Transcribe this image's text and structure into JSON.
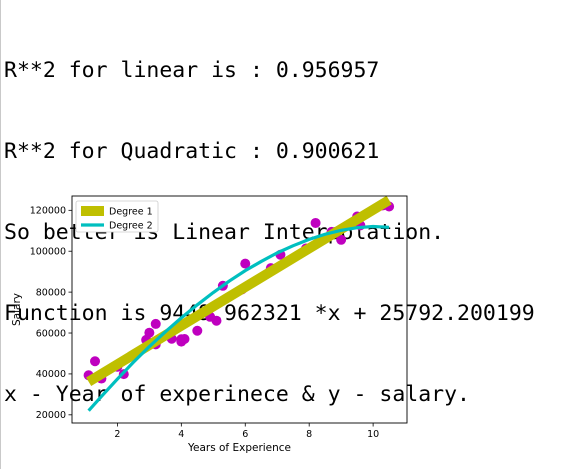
{
  "console": {
    "lines": [
      "R**2 for linear is : 0.956957",
      "R**2 for Quadratic : 0.900621",
      "So better is Linear Interpolation.",
      "Function is 9449.962321 *x + 25792.200199",
      "x - Year of experinece & y - salary."
    ]
  },
  "chart_data": {
    "type": "scatter",
    "xlabel": "Years of Experience",
    "ylabel": "Salary",
    "xlim": [
      0.58,
      11.06
    ],
    "ylim": [
      16000,
      127000
    ],
    "xticks": [
      2,
      4,
      6,
      8,
      10
    ],
    "yticks": [
      20000,
      40000,
      60000,
      80000,
      100000,
      120000
    ],
    "grid": false,
    "legend_position": "top-left",
    "points": {
      "color": "#bf00bf",
      "x": [
        1.1,
        1.3,
        1.5,
        2.0,
        2.2,
        2.9,
        3.0,
        3.2,
        3.2,
        3.7,
        3.9,
        4.0,
        4.0,
        4.1,
        4.5,
        4.9,
        5.1,
        5.3,
        5.9,
        6.0,
        6.8,
        7.1,
        7.9,
        8.2,
        8.7,
        9.0,
        9.5,
        9.6,
        10.3,
        10.5
      ],
      "y": [
        39343,
        46205,
        37731,
        43525,
        39891,
        56642,
        60150,
        54445,
        64445,
        57189,
        63218,
        55794,
        56957,
        57081,
        61111,
        67938,
        66029,
        83088,
        81363,
        93940,
        91738,
        98273,
        101302,
        113812,
        109431,
        105582,
        116969,
        112635,
        122391,
        121872
      ]
    },
    "series": [
      {
        "name": "Degree 1",
        "color": "#bfbf00",
        "x": [
          1.1,
          10.5
        ],
        "y": [
          36187,
          125016
        ]
      },
      {
        "name": "Degree 2",
        "color": "#00bfbf",
        "x": [
          1.1,
          1.5,
          2.0,
          2.5,
          3.0,
          3.5,
          4.0,
          4.5,
          5.0,
          5.5,
          6.0,
          6.5,
          7.0,
          7.5,
          8.0,
          8.5,
          9.0,
          9.5,
          10.0,
          10.5
        ],
        "y": [
          22000,
          29000,
          37500,
          45700,
          53400,
          60600,
          67400,
          73800,
          79800,
          85400,
          90500,
          95000,
          99200,
          102700,
          105800,
          108300,
          110200,
          111500,
          112100,
          111700
        ]
      }
    ]
  }
}
